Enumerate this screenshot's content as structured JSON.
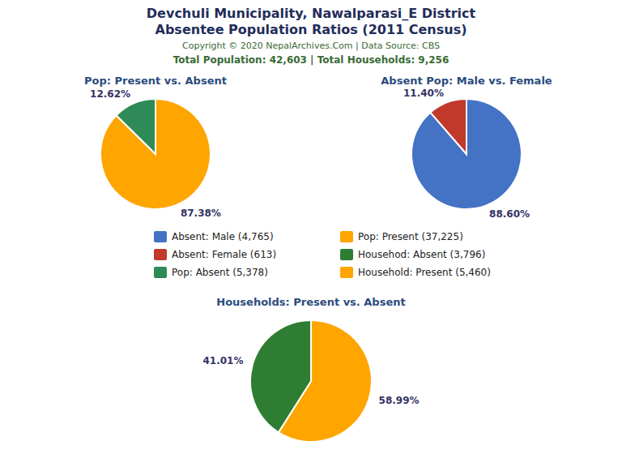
{
  "title": "Devchuli Municipality, Nawalparasi_E District",
  "subtitle": "Absentee Population Ratios (2011 Census)",
  "annotations": [
    "Copyright © 2020 NepalArchives.Com | Data Source: CBS",
    "Total Population: 42,603 | Total Households: 9,256"
  ],
  "chart_data": [
    {
      "type": "pie",
      "title": "Pop: Present vs. Absent",
      "categories": [
        "Pop: Present (37,225)",
        "Pop: Absent (5,378)"
      ],
      "values": [
        87.38,
        12.62
      ],
      "value_labels": [
        "87.38%",
        "12.62%"
      ],
      "colors": [
        "#FFA500",
        "#2E8B57"
      ],
      "data_labels": true
    },
    {
      "type": "pie",
      "title": "Absent Pop: Male vs. Female",
      "categories": [
        "Absent: Male (4,765)",
        "Absent: Female (613)"
      ],
      "values": [
        88.6,
        11.4
      ],
      "value_labels": [
        "88.60%",
        "11.40%"
      ],
      "colors": [
        "#4472C4",
        "#C0392B"
      ],
      "data_labels": true
    },
    {
      "type": "pie",
      "title": "Households: Present vs. Absent",
      "categories": [
        "Household: Present (5,460)",
        "Househod: Absent (3,796)"
      ],
      "values": [
        58.99,
        41.01
      ],
      "value_labels": [
        "58.99%",
        "41.01%"
      ],
      "colors": [
        "#FFA500",
        "#2E7D32"
      ],
      "data_labels": true
    }
  ]
}
